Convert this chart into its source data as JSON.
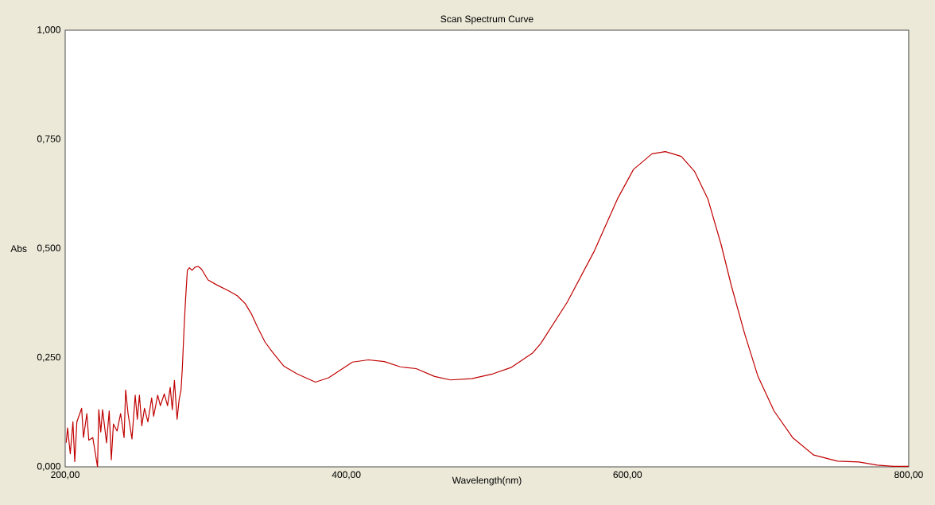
{
  "chart_data": {
    "type": "line",
    "title": "Scan Spectrum Curve",
    "xlabel": "Wavelength(nm)",
    "ylabel": "Abs",
    "xlim": [
      200,
      800
    ],
    "ylim": [
      0,
      1
    ],
    "xticks": [
      {
        "value": 200,
        "label": "200,00"
      },
      {
        "value": 400,
        "label": "400,00"
      },
      {
        "value": 600,
        "label": "600,00"
      },
      {
        "value": 800,
        "label": "800,00"
      }
    ],
    "yticks": [
      {
        "value": 0,
        "label": "0,000"
      },
      {
        "value": 0.25,
        "label": "0,250"
      },
      {
        "value": 0.5,
        "label": "0,500"
      },
      {
        "value": 0.75,
        "label": "0,750"
      },
      {
        "value": 1,
        "label": "1,000"
      }
    ],
    "grid": false,
    "marker": "none",
    "line_style": "solid",
    "series": [
      {
        "color": "#c00000",
        "x": [
          200.7,
          201.7,
          203.6,
          205.5,
          206.8,
          208.3,
          211.7,
          213,
          215.4,
          216.8,
          219.6,
          223,
          223.9,
          225.3,
          226.6,
          229.4,
          231.3,
          232.8,
          234.3,
          236.9,
          239.4,
          241.9,
          243,
          244.7,
          247.5,
          249.8,
          251.3,
          252.8,
          254.5,
          256.4,
          258.8,
          261.5,
          262.9,
          265.8,
          267.7,
          270.5,
          272.8,
          274.7,
          276.2,
          277.7,
          279.6,
          281.1,
          282.4,
          283.3,
          284.5,
          285.6,
          286.9,
          288.4,
          290.3,
          292.2,
          294.6,
          296.9,
          301.6,
          308.2,
          315.8,
          322.3,
          328,
          332.7,
          336.5,
          342.1,
          347.8,
          355.4,
          364.8,
          378,
          387.4,
          404.4,
          415.7,
          427,
          438.3,
          449.6,
          462.8,
          474.1,
          489.2,
          504.3,
          517.5,
          532.6,
          538.2,
          557.1,
          576,
          592.9,
          604.2,
          617.4,
          626.9,
          638.2,
          647.6,
          657.1,
          666.5,
          674,
          683.4,
          692.8,
          704.2,
          717.4,
          732.4,
          749.4,
          764.5,
          777.7,
          789,
          800
        ],
        "values": [
          0.055,
          0.089,
          0.03,
          0.103,
          0.012,
          0.103,
          0.134,
          0.067,
          0.122,
          0.061,
          0.067,
          0.0,
          0.131,
          0.08,
          0.131,
          0.055,
          0.128,
          0.016,
          0.098,
          0.082,
          0.122,
          0.067,
          0.176,
          0.122,
          0.064,
          0.164,
          0.109,
          0.164,
          0.094,
          0.134,
          0.103,
          0.158,
          0.116,
          0.164,
          0.14,
          0.167,
          0.14,
          0.182,
          0.131,
          0.198,
          0.109,
          0.155,
          0.176,
          0.225,
          0.313,
          0.383,
          0.45,
          0.456,
          0.45,
          0.457,
          0.459,
          0.453,
          0.428,
          0.416,
          0.404,
          0.392,
          0.374,
          0.349,
          0.322,
          0.286,
          0.261,
          0.231,
          0.213,
          0.194,
          0.204,
          0.24,
          0.245,
          0.241,
          0.229,
          0.225,
          0.207,
          0.199,
          0.202,
          0.213,
          0.228,
          0.261,
          0.282,
          0.377,
          0.492,
          0.614,
          0.681,
          0.717,
          0.722,
          0.711,
          0.677,
          0.614,
          0.51,
          0.413,
          0.304,
          0.207,
          0.128,
          0.067,
          0.027,
          0.013,
          0.011,
          0.004,
          0.001,
          0.001
        ]
      }
    ]
  }
}
